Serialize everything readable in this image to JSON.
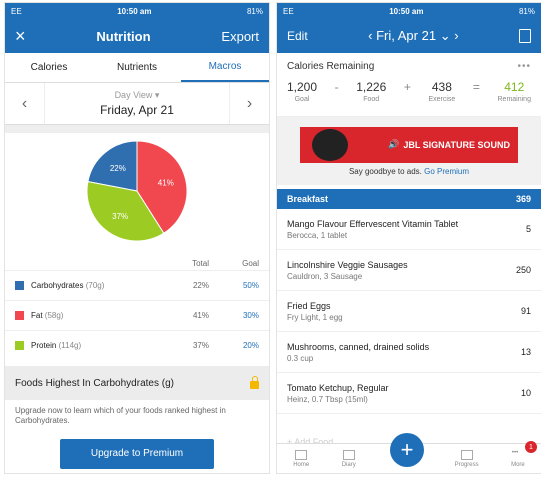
{
  "left": {
    "status": {
      "left": "EE",
      "time": "10:50 am",
      "right": "81%"
    },
    "appbar": {
      "close": "×",
      "title": "Nutrition",
      "action": "Export"
    },
    "tabs": [
      {
        "label": "Calories"
      },
      {
        "label": "Nutrients"
      },
      {
        "label": "Macros"
      }
    ],
    "date": {
      "view": "Day View ▾",
      "day": "Friday, Apr 21"
    },
    "chart_data": {
      "type": "pie",
      "slices": [
        {
          "label": "Carbohydrates",
          "value": 22,
          "color": "#2f6fb0"
        },
        {
          "label": "Fat",
          "value": 41,
          "color": "#f1484f"
        },
        {
          "label": "Protein",
          "value": 37,
          "color": "#9ccc23"
        }
      ]
    },
    "table": {
      "headers": [
        "Total",
        "Goal"
      ],
      "rows": [
        {
          "name": "Carbohydrates",
          "grams": "(70g)",
          "total": "22%",
          "goal": "50%",
          "color": "#2f6fb0"
        },
        {
          "name": "Fat",
          "grams": "(58g)",
          "total": "41%",
          "goal": "30%",
          "color": "#f1484f"
        },
        {
          "name": "Protein",
          "grams": "(114g)",
          "total": "37%",
          "goal": "20%",
          "color": "#9ccc23"
        }
      ]
    },
    "section_title": "Foods Highest In Carbohydrates (g)",
    "upgrade_text": "Upgrade now to learn which of your foods ranked highest in Carbohydrates.",
    "upgrade_button": "Upgrade to Premium"
  },
  "right": {
    "status": {
      "left": "EE",
      "time": "10:50 am",
      "right": "81%"
    },
    "appbar": {
      "edit": "Edit",
      "date": "Fri, Apr 21"
    },
    "calories": {
      "title": "Calories Remaining",
      "goal": "1,200",
      "goal_label": "Goal",
      "food": "1,226",
      "food_label": "Food",
      "exercise": "438",
      "exercise_label": "Exercise",
      "remaining": "412",
      "remaining_label": "Remaining"
    },
    "ad": {
      "brand": "JBL SIGNATURE SOUND",
      "text": "Say goodbye to ads.",
      "link": "Go Premium"
    },
    "breakfast": {
      "label": "Breakfast",
      "total": "369"
    },
    "foods": [
      {
        "name": "Mango Flavour Effervescent Vitamin Tablet",
        "sub": "Berocca, 1 tablet",
        "cal": "5"
      },
      {
        "name": "Lincolnshire Veggie Sausages",
        "sub": "Cauldron, 3 Sausage",
        "cal": "250"
      },
      {
        "name": "Fried Eggs",
        "sub": "Fry Light, 1 egg",
        "cal": "91"
      },
      {
        "name": "Mushrooms, canned, drained solids",
        "sub": "0.3 cup",
        "cal": "13"
      },
      {
        "name": "Tomato Ketchup, Regular",
        "sub": "Heinz, 0.7 Tbsp (15ml)",
        "cal": "10"
      }
    ],
    "add_food": "+ Add Food",
    "nav": [
      {
        "label": "Home"
      },
      {
        "label": "Diary"
      },
      {
        "label": ""
      },
      {
        "label": "Progress"
      },
      {
        "label": "More"
      }
    ],
    "badge": "1"
  }
}
